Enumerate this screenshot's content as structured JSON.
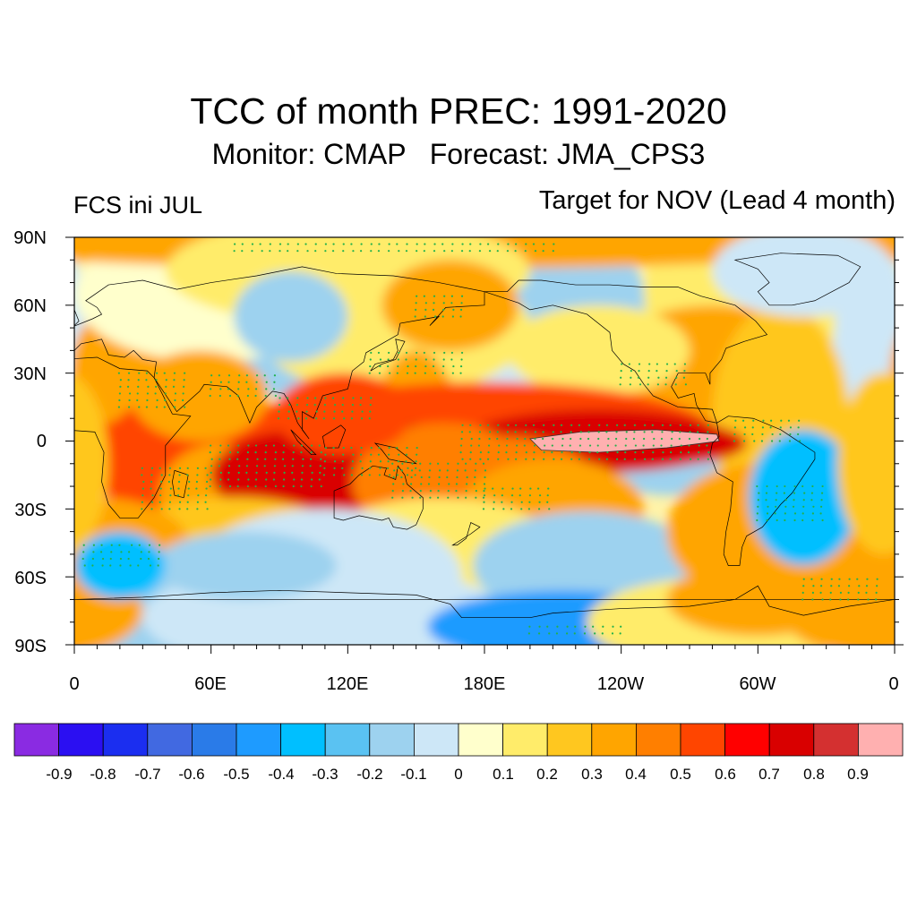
{
  "header": {
    "title": "TCC of month PREC: 1991-2020",
    "subtitle": "Monitor: CMAP   Forecast: JMA_CPS3",
    "left_label": "FCS ini JUL",
    "right_label": "Target for NOV (Lead 4 month)"
  },
  "map": {
    "lat_ticks": [
      "90N",
      "60N",
      "30N",
      "0",
      "30S",
      "60S",
      "90S"
    ],
    "lon_ticks": [
      "0",
      "60E",
      "120E",
      "180E",
      "120W",
      "60W",
      "0"
    ],
    "stipple_color": "#22b14c",
    "land_outline_color": "#000000"
  },
  "colorbar": {
    "colors": [
      "#8a2be2",
      "#2b0ff2",
      "#1b2ef0",
      "#4169e1",
      "#2a7be8",
      "#1e9bff",
      "#00bfff",
      "#5ac2f2",
      "#9dd2ef",
      "#cde7f7",
      "#ffffcc",
      "#ffec6a",
      "#ffc71f",
      "#ffa500",
      "#ff7f00",
      "#ff4500",
      "#ff0000",
      "#d90000",
      "#d43030",
      "#ffb0b0"
    ],
    "labels": [
      "-0.9",
      "-0.8",
      "-0.7",
      "-0.6",
      "-0.5",
      "-0.4",
      "-0.3",
      "-0.2",
      "-0.1",
      "0",
      "0.1",
      "0.2",
      "0.3",
      "0.4",
      "0.5",
      "0.6",
      "0.7",
      "0.8",
      "0.9"
    ]
  }
}
